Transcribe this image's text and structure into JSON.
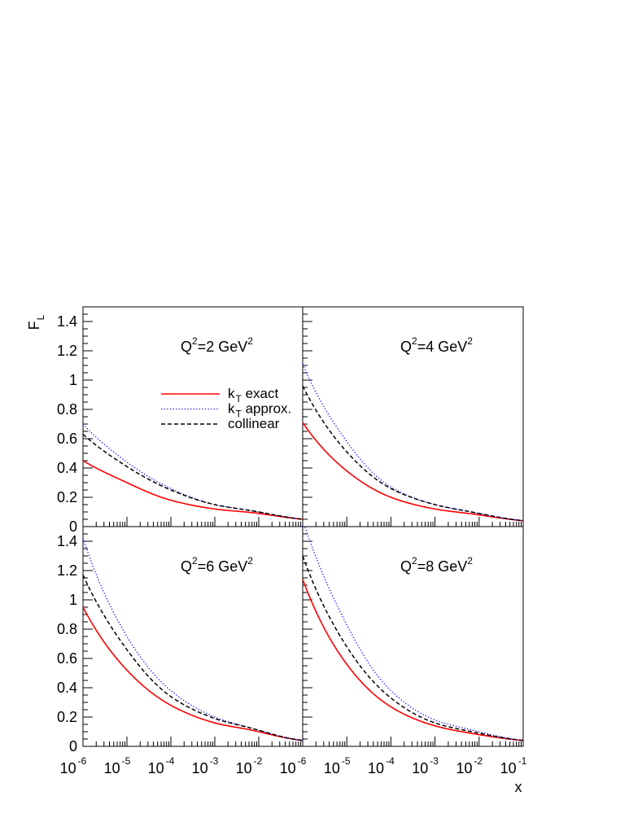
{
  "chart_data": {
    "type": "line",
    "x_scale": "log",
    "xlim": [
      1e-06,
      0.1
    ],
    "ylim": [
      0,
      1.5
    ],
    "ylabel": "F",
    "ylabel_sub": "L",
    "xlabel": "x",
    "y_ticks": [
      "0",
      "0.2",
      "0.4",
      "0.6",
      "0.8",
      "1",
      "1.2",
      "1.4"
    ],
    "x_ticks": [
      {
        "base": "10",
        "exp": "-6"
      },
      {
        "base": "10",
        "exp": "-5"
      },
      {
        "base": "10",
        "exp": "-4"
      },
      {
        "base": "10",
        "exp": "-3"
      },
      {
        "base": "10",
        "exp": "-2"
      },
      {
        "base": "10",
        "exp": "-1"
      }
    ],
    "legend": {
      "placement": "top-left panel, center",
      "entries": [
        {
          "label": "k",
          "sub": "T",
          "rest": " exact",
          "color": "#ff0000",
          "style": "solid"
        },
        {
          "label": "k",
          "sub": "T",
          "rest": " approx.",
          "color": "#0000ff",
          "style": "dotted"
        },
        {
          "label": "collinear",
          "sub": "",
          "rest": "",
          "color": "#000000",
          "style": "dashed"
        }
      ]
    },
    "x": [
      1e-06,
      1e-05,
      0.0001,
      0.001,
      0.01,
      0.1
    ],
    "panels": [
      {
        "title": {
          "pre": "Q",
          "sup1": "2",
          "mid": "=2 GeV",
          "sup2": "2"
        },
        "series": [
          {
            "name": "kT exact",
            "values": [
              0.45,
              0.3,
              0.18,
              0.12,
              0.09,
              0.05
            ]
          },
          {
            "name": "kT approx.",
            "values": [
              0.7,
              0.44,
              0.26,
              0.15,
              0.1,
              0.05
            ]
          },
          {
            "name": "collinear",
            "values": [
              0.63,
              0.41,
              0.25,
              0.15,
              0.1,
              0.05
            ]
          }
        ]
      },
      {
        "title": {
          "pre": "Q",
          "sup1": "2",
          "mid": "=4 GeV",
          "sup2": "2"
        },
        "series": [
          {
            "name": "kT exact",
            "values": [
              0.71,
              0.38,
              0.2,
              0.12,
              0.08,
              0.04
            ]
          },
          {
            "name": "kT approx.",
            "values": [
              1.11,
              0.58,
              0.27,
              0.15,
              0.09,
              0.04
            ]
          },
          {
            "name": "collinear",
            "values": [
              0.96,
              0.51,
              0.26,
              0.15,
              0.09,
              0.04
            ]
          }
        ]
      },
      {
        "title": {
          "pre": "Q",
          "sup1": "2",
          "mid": "=6 GeV",
          "sup2": "2"
        },
        "series": [
          {
            "name": "kT exact",
            "values": [
              0.95,
              0.52,
              0.28,
              0.16,
              0.1,
              0.04
            ]
          },
          {
            "name": "kT approx.",
            "values": [
              1.42,
              0.75,
              0.38,
              0.2,
              0.11,
              0.04
            ]
          },
          {
            "name": "collinear",
            "values": [
              1.17,
              0.66,
              0.34,
              0.19,
              0.11,
              0.04
            ]
          }
        ]
      },
      {
        "title": {
          "pre": "Q",
          "sup1": "2",
          "mid": "=8 GeV",
          "sup2": "2"
        },
        "series": [
          {
            "name": "kT exact",
            "values": [
              1.14,
              0.56,
              0.27,
              0.14,
              0.08,
              0.04
            ]
          },
          {
            "name": "kT approx.",
            "values": [
              1.55,
              0.83,
              0.38,
              0.18,
              0.1,
              0.04
            ]
          },
          {
            "name": "collinear",
            "values": [
              1.3,
              0.68,
              0.33,
              0.16,
              0.09,
              0.04
            ]
          }
        ]
      }
    ]
  }
}
